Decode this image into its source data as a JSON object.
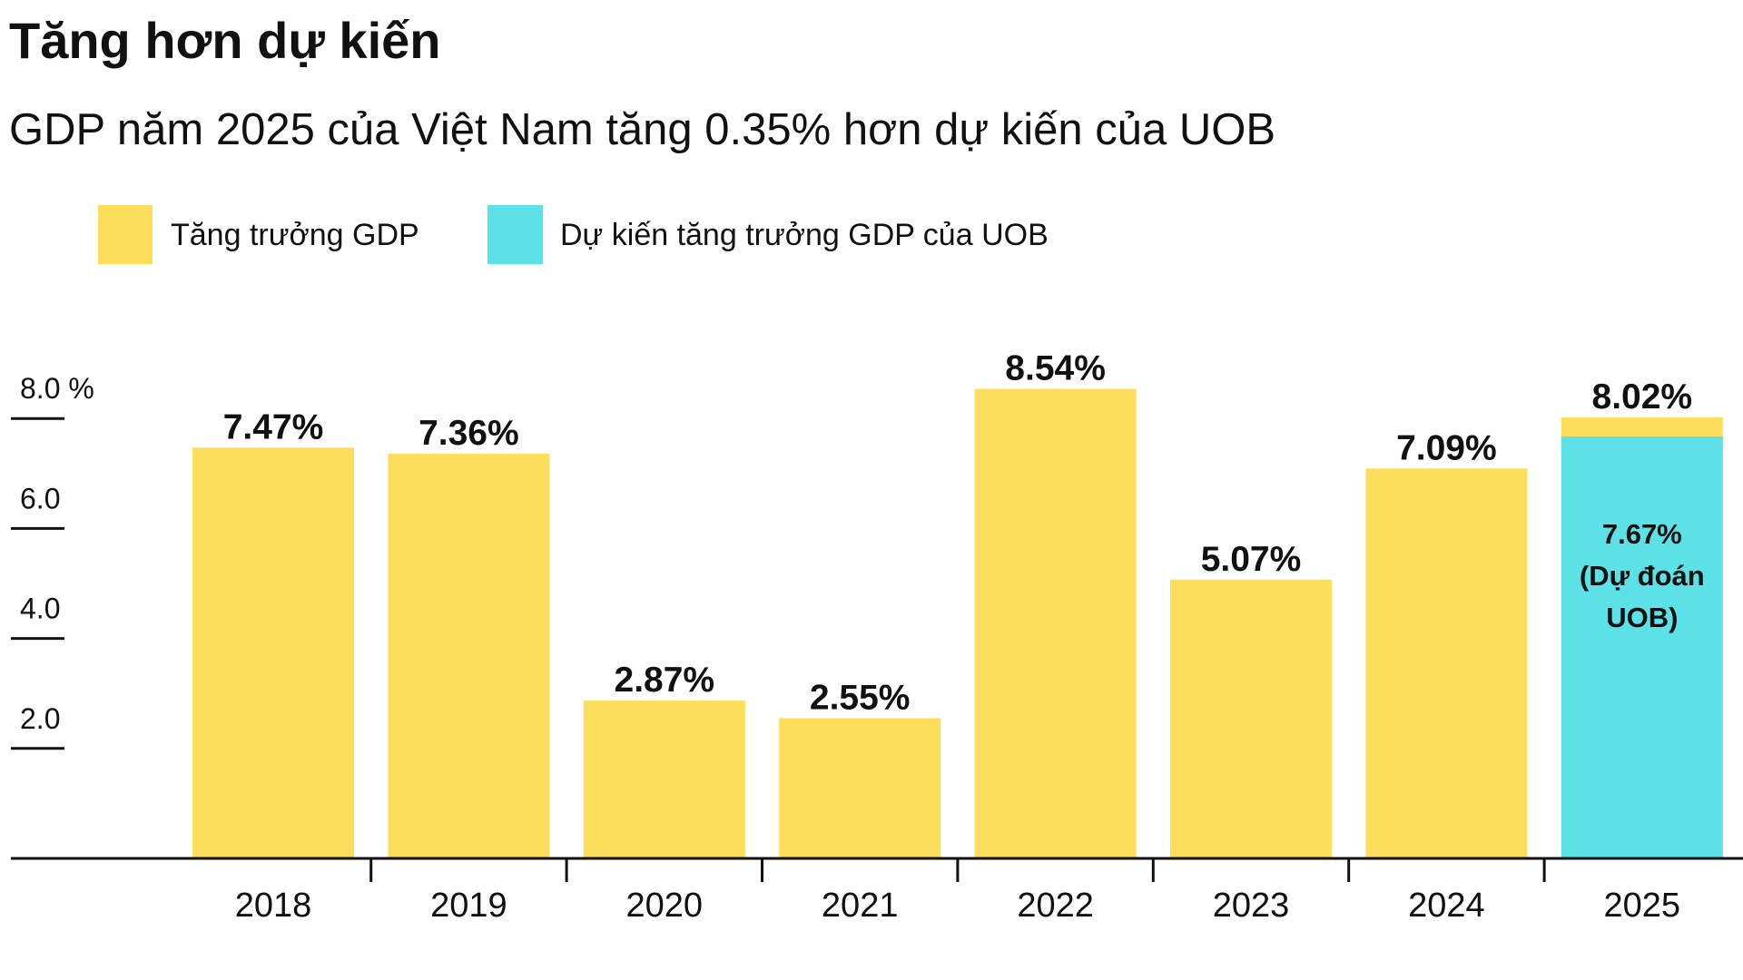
{
  "colors": {
    "actual": "#FDDD5C",
    "forecast": "#5CE1E6",
    "text": "#111111",
    "axis": "#111111"
  },
  "chart_data": {
    "type": "bar",
    "title": "Tăng hơn dự kiến",
    "subtitle": "GDP năm 2025 của Việt Nam tăng 0.35% hơn dự kiến của UOB",
    "categories": [
      "2018",
      "2019",
      "2020",
      "2021",
      "2022",
      "2023",
      "2024",
      "2025"
    ],
    "series": [
      {
        "name": "Tăng trưởng GDP",
        "values": [
          7.47,
          7.36,
          2.87,
          2.55,
          8.54,
          5.07,
          7.09,
          8.02
        ],
        "labels": [
          "7.47%",
          "7.36%",
          "2.87%",
          "2.55%",
          "8.54%",
          "5.07%",
          "7.09%",
          "8.02%"
        ]
      },
      {
        "name": "Dự kiến tăng trưởng GDP của UOB",
        "values": [
          null,
          null,
          null,
          null,
          null,
          null,
          null,
          7.67
        ],
        "labels": [
          "",
          "",
          "",
          "",
          "",
          "",
          "",
          "7.67%"
        ],
        "note_lines": [
          "(Dự đoán",
          "UOB)"
        ]
      }
    ],
    "y_ticks": [
      {
        "value": 2,
        "label": "2.0"
      },
      {
        "value": 4,
        "label": "4.0"
      },
      {
        "value": 6,
        "label": "6.0"
      },
      {
        "value": 8,
        "label": "8.0 %"
      }
    ],
    "ylim": [
      0,
      9
    ],
    "grid": false,
    "legend": "top-left"
  }
}
